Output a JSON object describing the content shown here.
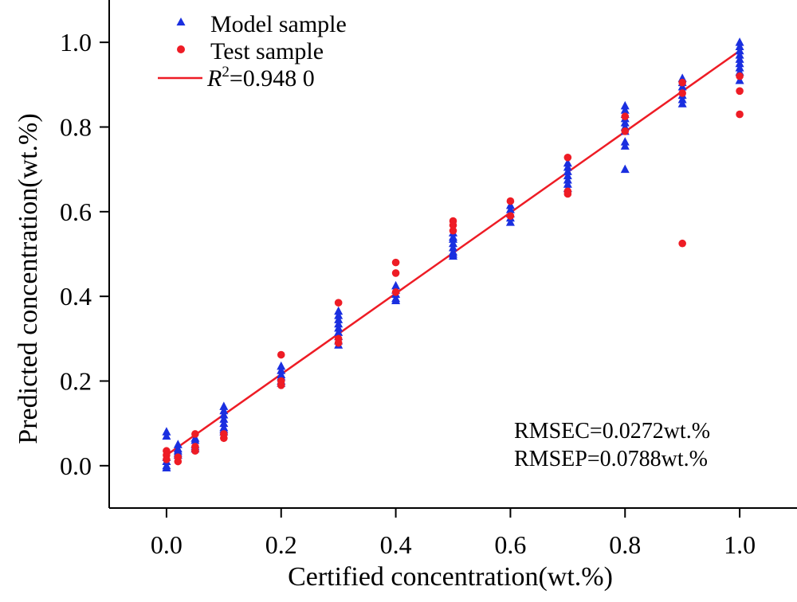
{
  "chart_data": {
    "type": "scatter",
    "title": "",
    "xlabel": "Certified concentration(wt.%)",
    "ylabel": "Predicted concentration(wt.%)",
    "xlim": [
      -0.1,
      1.1
    ],
    "ylim": [
      -0.1,
      1.1
    ],
    "x_ticks": [
      0.0,
      0.2,
      0.4,
      0.6,
      0.8,
      1.0
    ],
    "x_tick_labels": [
      "0.0",
      "0.2",
      "0.4",
      "0.6",
      "0.8",
      "1.0"
    ],
    "y_ticks": [
      0.0,
      0.2,
      0.4,
      0.6,
      0.8,
      1.0
    ],
    "y_tick_labels": [
      "0.0",
      "0.2",
      "0.4",
      "0.6",
      "0.8",
      "1.0"
    ],
    "grid": false,
    "legend_position": "top-left",
    "series": [
      {
        "name": "Model sample",
        "marker": "triangle",
        "color": "#1a2fe0",
        "points": [
          [
            0.0,
            0.08
          ],
          [
            0.0,
            0.07
          ],
          [
            0.0,
            0.02
          ],
          [
            0.0,
            0.01
          ],
          [
            0.0,
            0.0
          ],
          [
            0.0,
            -0.005
          ],
          [
            0.02,
            0.05
          ],
          [
            0.02,
            0.04
          ],
          [
            0.02,
            0.035
          ],
          [
            0.02,
            0.03
          ],
          [
            0.02,
            0.025
          ],
          [
            0.05,
            0.065
          ],
          [
            0.05,
            0.06
          ],
          [
            0.05,
            0.05
          ],
          [
            0.05,
            0.045
          ],
          [
            0.05,
            0.04
          ],
          [
            0.1,
            0.14
          ],
          [
            0.1,
            0.13
          ],
          [
            0.1,
            0.12
          ],
          [
            0.1,
            0.11
          ],
          [
            0.1,
            0.1
          ],
          [
            0.1,
            0.09
          ],
          [
            0.1,
            0.085
          ],
          [
            0.1,
            0.08
          ],
          [
            0.2,
            0.235
          ],
          [
            0.2,
            0.225
          ],
          [
            0.2,
            0.215
          ],
          [
            0.2,
            0.21
          ],
          [
            0.2,
            0.2
          ],
          [
            0.2,
            0.195
          ],
          [
            0.3,
            0.365
          ],
          [
            0.3,
            0.355
          ],
          [
            0.3,
            0.345
          ],
          [
            0.3,
            0.335
          ],
          [
            0.3,
            0.325
          ],
          [
            0.3,
            0.315
          ],
          [
            0.3,
            0.305
          ],
          [
            0.3,
            0.295
          ],
          [
            0.3,
            0.285
          ],
          [
            0.4,
            0.425
          ],
          [
            0.4,
            0.415
          ],
          [
            0.4,
            0.405
          ],
          [
            0.4,
            0.395
          ],
          [
            0.4,
            0.39
          ],
          [
            0.5,
            0.55
          ],
          [
            0.5,
            0.54
          ],
          [
            0.5,
            0.535
          ],
          [
            0.5,
            0.525
          ],
          [
            0.5,
            0.515
          ],
          [
            0.5,
            0.505
          ],
          [
            0.5,
            0.5
          ],
          [
            0.5,
            0.495
          ],
          [
            0.6,
            0.615
          ],
          [
            0.6,
            0.605
          ],
          [
            0.6,
            0.595
          ],
          [
            0.6,
            0.585
          ],
          [
            0.6,
            0.575
          ],
          [
            0.7,
            0.715
          ],
          [
            0.7,
            0.705
          ],
          [
            0.7,
            0.695
          ],
          [
            0.7,
            0.685
          ],
          [
            0.7,
            0.675
          ],
          [
            0.7,
            0.665
          ],
          [
            0.7,
            0.655
          ],
          [
            0.8,
            0.85
          ],
          [
            0.8,
            0.84
          ],
          [
            0.8,
            0.83
          ],
          [
            0.8,
            0.82
          ],
          [
            0.8,
            0.81
          ],
          [
            0.8,
            0.8
          ],
          [
            0.8,
            0.79
          ],
          [
            0.8,
            0.765
          ],
          [
            0.8,
            0.755
          ],
          [
            0.8,
            0.7
          ],
          [
            0.9,
            0.915
          ],
          [
            0.9,
            0.905
          ],
          [
            0.9,
            0.895
          ],
          [
            0.9,
            0.875
          ],
          [
            0.9,
            0.865
          ],
          [
            0.9,
            0.855
          ],
          [
            1.0,
            1.0
          ],
          [
            1.0,
            0.99
          ],
          [
            1.0,
            0.98
          ],
          [
            1.0,
            0.97
          ],
          [
            1.0,
            0.96
          ],
          [
            1.0,
            0.95
          ],
          [
            1.0,
            0.94
          ],
          [
            1.0,
            0.93
          ],
          [
            1.0,
            0.91
          ]
        ]
      },
      {
        "name": "Test sample",
        "marker": "circle",
        "color": "#ee1c25",
        "points": [
          [
            0.0,
            0.035
          ],
          [
            0.0,
            0.025
          ],
          [
            0.0,
            0.015
          ],
          [
            0.02,
            0.02
          ],
          [
            0.02,
            0.01
          ],
          [
            0.05,
            0.075
          ],
          [
            0.05,
            0.045
          ],
          [
            0.05,
            0.035
          ],
          [
            0.1,
            0.075
          ],
          [
            0.1,
            0.065
          ],
          [
            0.2,
            0.262
          ],
          [
            0.2,
            0.2
          ],
          [
            0.2,
            0.19
          ],
          [
            0.3,
            0.385
          ],
          [
            0.3,
            0.3
          ],
          [
            0.3,
            0.29
          ],
          [
            0.4,
            0.48
          ],
          [
            0.4,
            0.455
          ],
          [
            0.4,
            0.41
          ],
          [
            0.5,
            0.578
          ],
          [
            0.5,
            0.568
          ],
          [
            0.5,
            0.555
          ],
          [
            0.6,
            0.625
          ],
          [
            0.6,
            0.59
          ],
          [
            0.7,
            0.728
          ],
          [
            0.7,
            0.648
          ],
          [
            0.7,
            0.642
          ],
          [
            0.8,
            0.825
          ],
          [
            0.8,
            0.79
          ],
          [
            0.9,
            0.905
          ],
          [
            0.9,
            0.88
          ],
          [
            0.9,
            0.525
          ],
          [
            1.0,
            0.92
          ],
          [
            1.0,
            0.885
          ],
          [
            1.0,
            0.83
          ]
        ]
      }
    ],
    "fit_line": {
      "name": "R²=0.948 0",
      "label_italic": "R",
      "label_sup": "2",
      "label_rest": "=0.948 0",
      "color": "#ee1c25",
      "x": [
        0.0,
        1.0
      ],
      "y": [
        0.025,
        0.98
      ]
    },
    "annotations": [
      "RMSEC=0.0272wt.%",
      "RMSEP=0.0788wt.%"
    ]
  }
}
